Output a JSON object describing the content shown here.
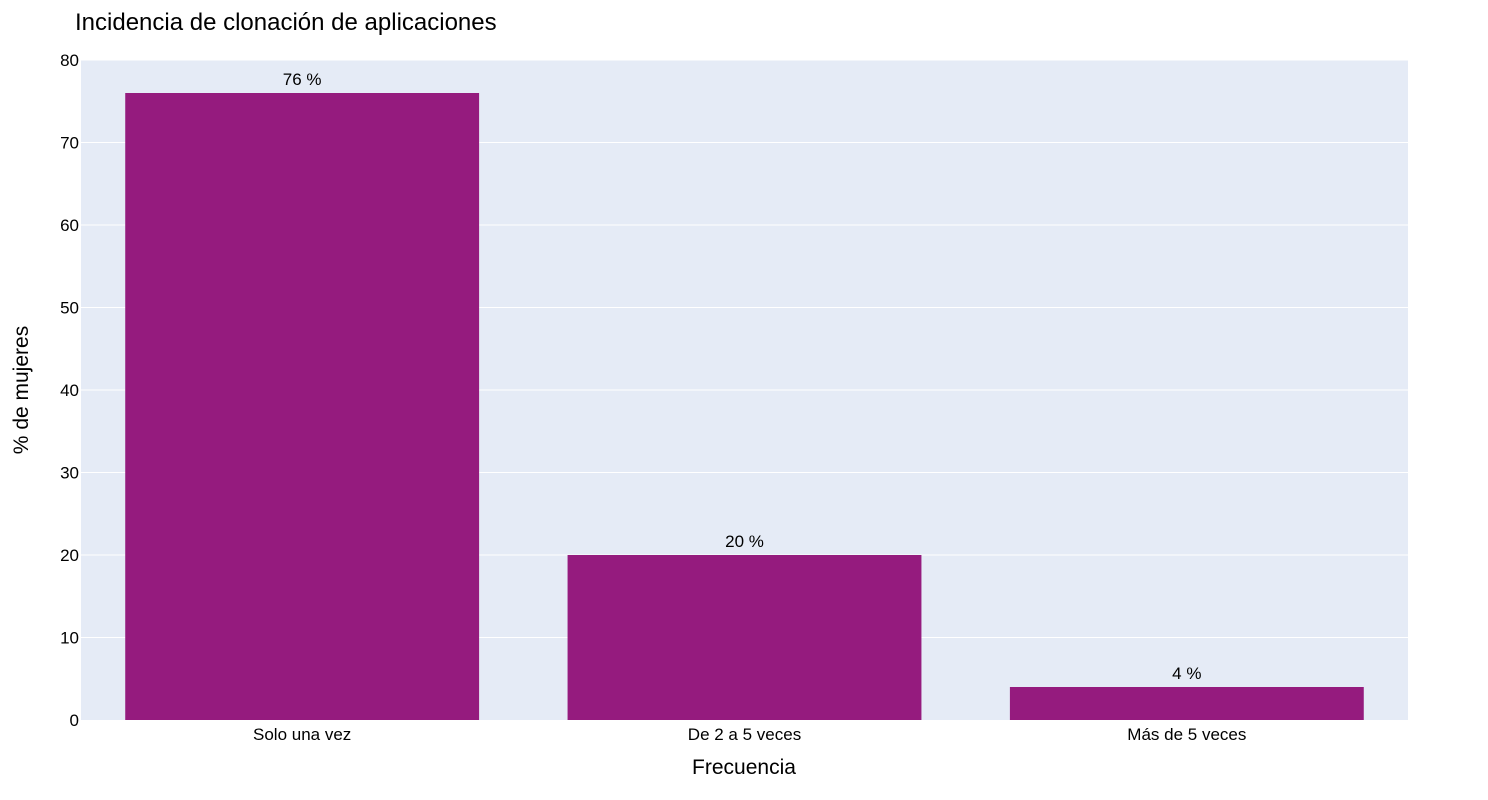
{
  "chart_data": {
    "type": "bar",
    "title": "Incidencia de clonación de aplicaciones",
    "xlabel": "Frecuencia",
    "ylabel": "% de mujeres",
    "categories": [
      "Solo una vez",
      "De 2 a 5 veces",
      "Más de 5 veces"
    ],
    "values": [
      76,
      20,
      4
    ],
    "data_labels": [
      "76 %",
      "20 %",
      "4 %"
    ],
    "ylim": [
      0,
      80
    ],
    "yticks": [
      0,
      10,
      20,
      30,
      40,
      50,
      60,
      70,
      80
    ],
    "grid": true,
    "legend": "none",
    "colors": {
      "bar": "#951b7e",
      "plot_background": "#e5ebf6",
      "gridline": "#ffffff"
    }
  }
}
